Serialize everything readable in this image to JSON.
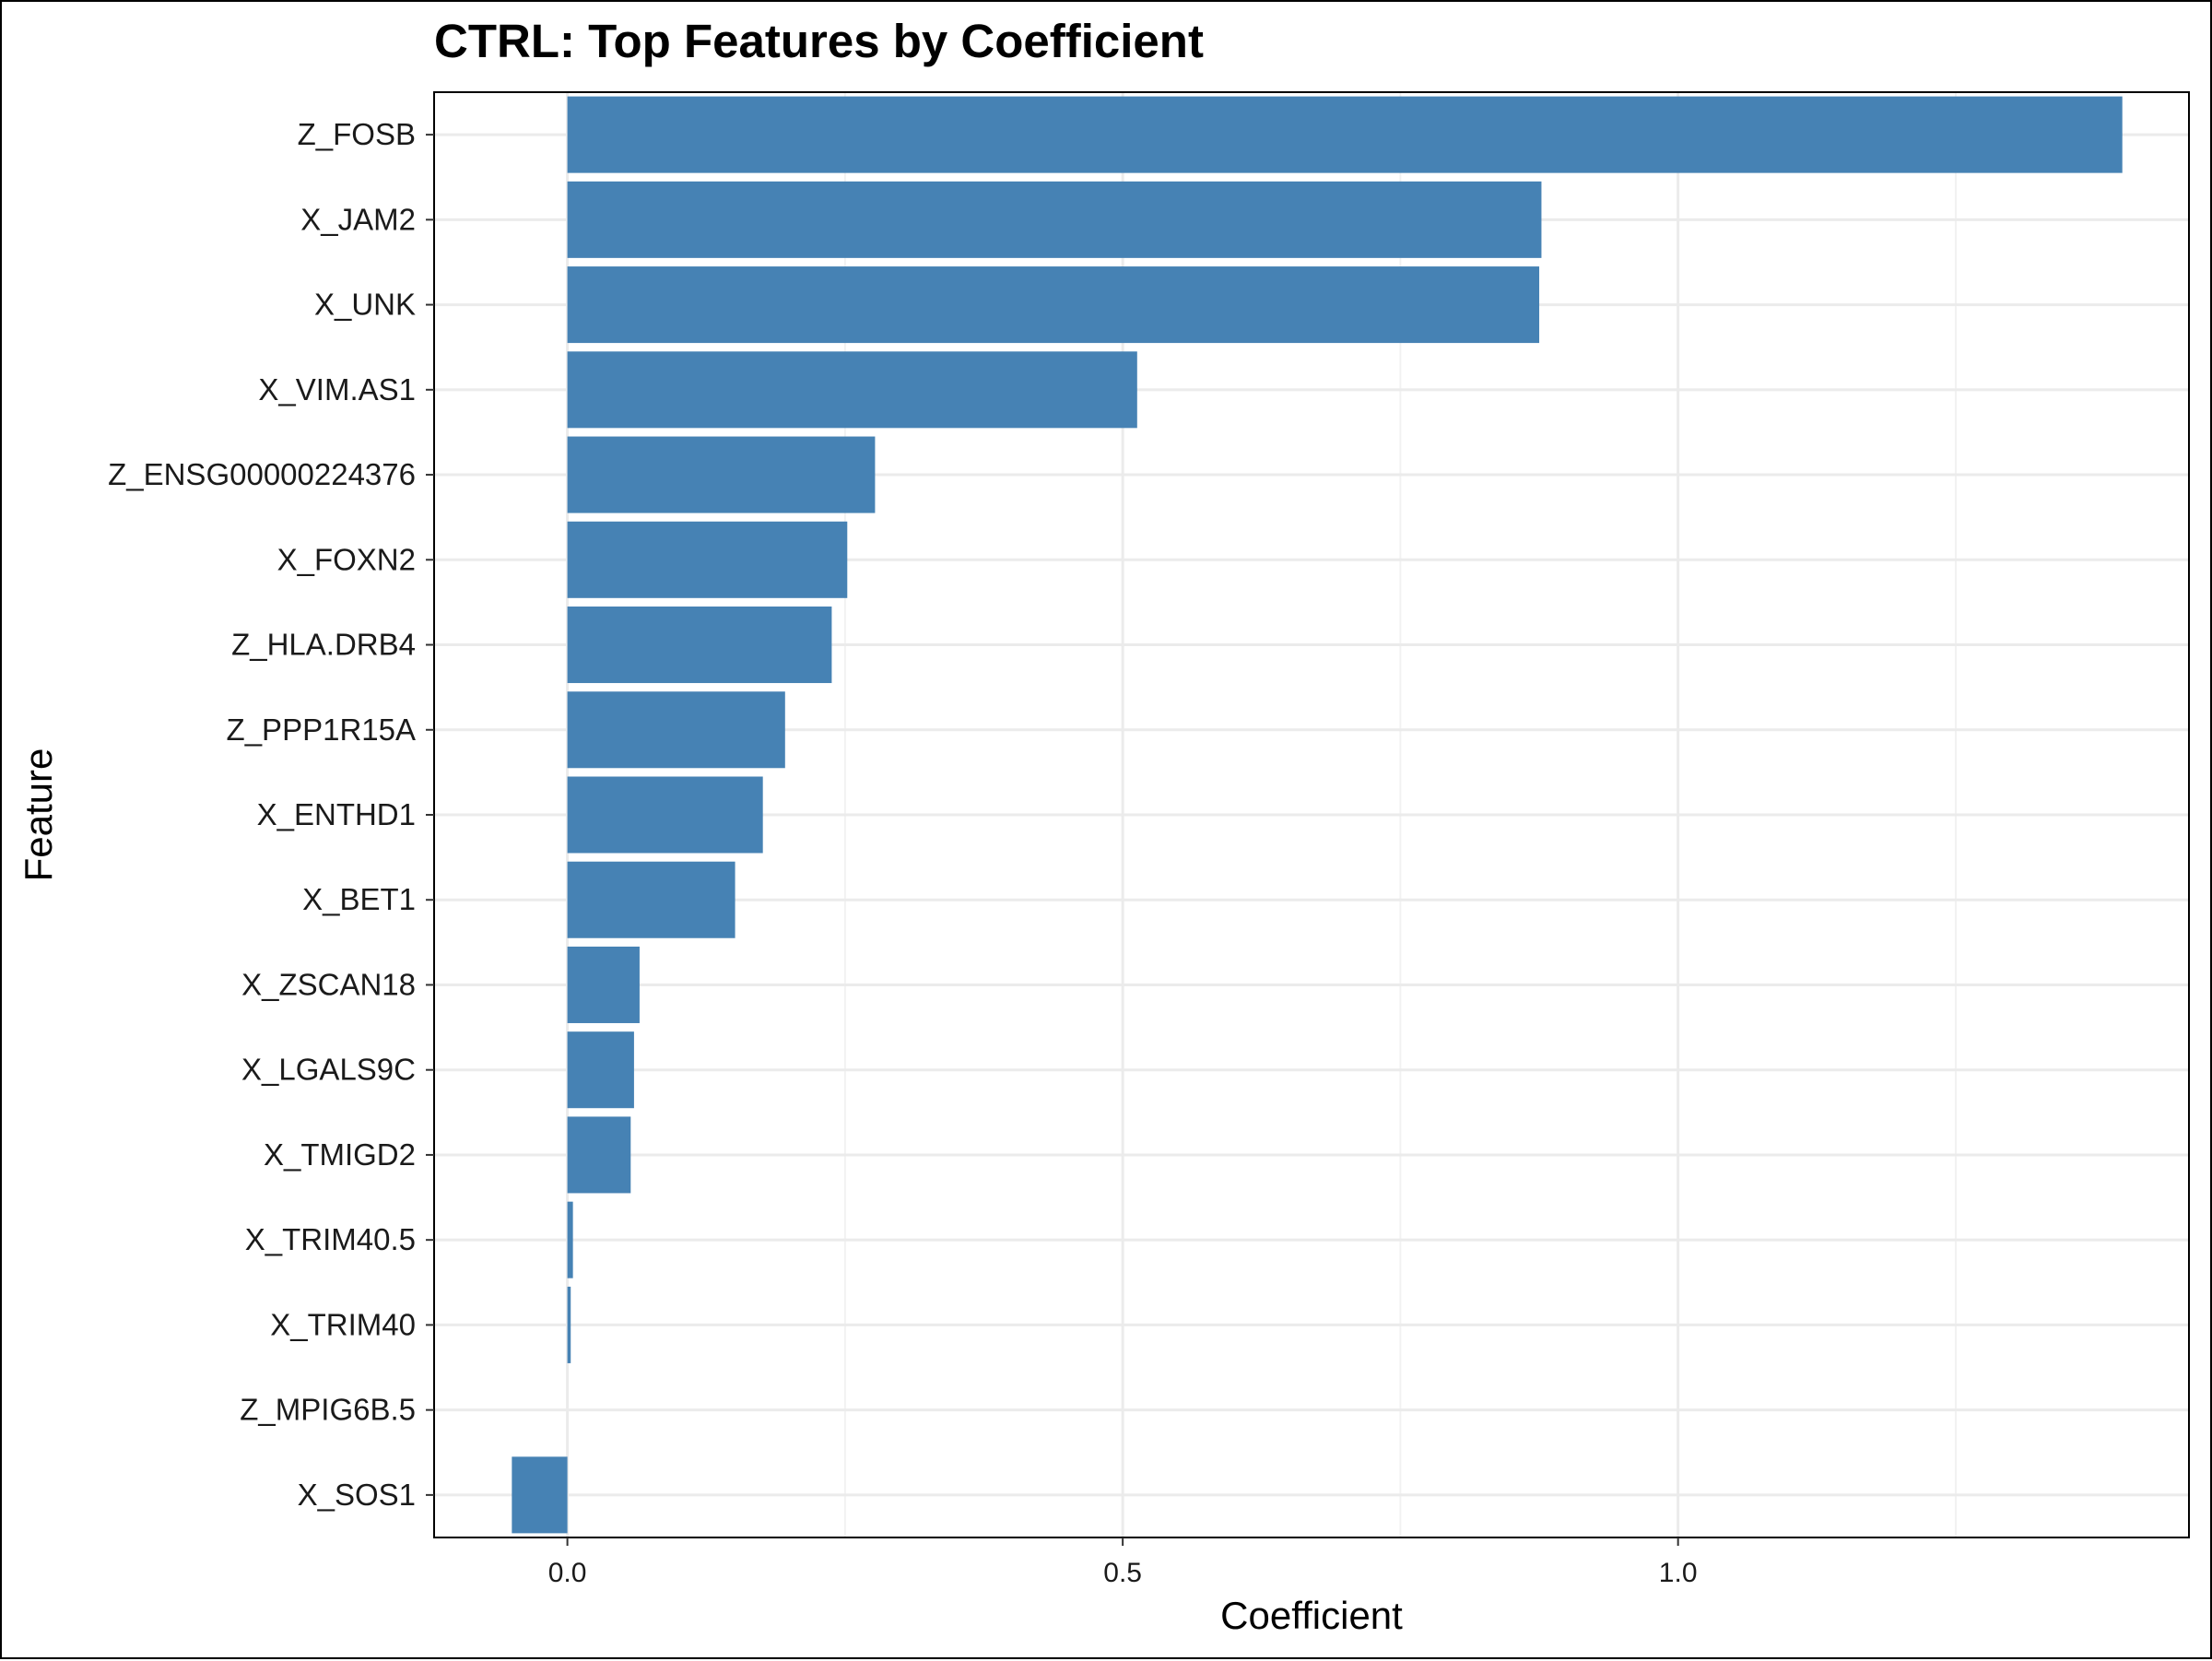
{
  "chart_data": {
    "type": "bar",
    "orientation": "horizontal",
    "title": "CTRL: Top Features by Coefficient",
    "xlabel": "Coefficient",
    "ylabel": "Feature",
    "xlim": [
      -0.12,
      1.46
    ],
    "xticks": [
      0.0,
      0.5,
      1.0
    ],
    "xtick_labels": [
      "0.0",
      "0.5",
      "1.0"
    ],
    "minor_xticks": [
      0.25,
      0.75,
      1.25
    ],
    "grid": true,
    "bar_color": "#4682B4",
    "categories": [
      "Z_FOSB",
      "X_JAM2",
      "X_UNK",
      "X_VIM.AS1",
      "Z_ENSG00000224376",
      "X_FOXN2",
      "Z_HLA.DRB4",
      "Z_PPP1R15A",
      "X_ENTHD1",
      "X_BET1",
      "X_ZSCAN18",
      "X_LGALS9C",
      "X_TMIGD2",
      "X_TRIM40.5",
      "X_TRIM40",
      "Z_MPIG6B.5",
      "X_SOS1"
    ],
    "values": [
      1.4,
      0.877,
      0.875,
      0.513,
      0.277,
      0.252,
      0.238,
      0.196,
      0.176,
      0.151,
      0.065,
      0.06,
      0.057,
      0.005,
      0.003,
      0.0,
      -0.05
    ]
  }
}
